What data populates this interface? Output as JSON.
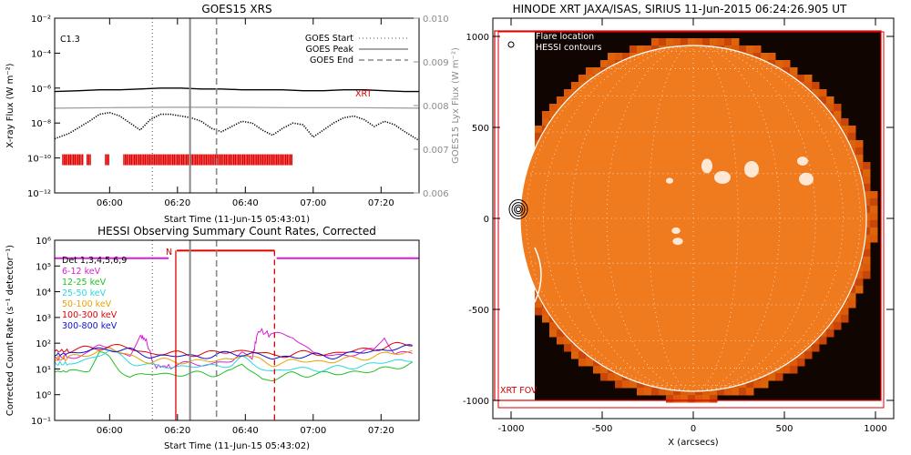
{
  "chart_data": [
    {
      "type": "line",
      "title": "GOES15 XRS",
      "xlabel": "Start Time (11-Jun-15 05:43:01)",
      "ylabel": "X-ray Flux (W m⁻²)",
      "y2label": "GOES15 Lyx Flux (W m⁻²)",
      "x_ticks": [
        "06:00",
        "06:20",
        "06:40",
        "07:00",
        "07:20"
      ],
      "x_range_minutes": [
        5.73,
        7.52
      ],
      "ylim_log10": [
        -12,
        -2
      ],
      "y_ticks": [
        "10⁻²",
        "10⁻⁴",
        "10⁻⁶",
        "10⁻⁸",
        "10⁻¹⁰",
        "10⁻¹²"
      ],
      "y2_range": [
        0.006,
        0.01
      ],
      "y2_ticks": [
        "0.010",
        "0.009",
        "0.008",
        "0.007",
        "0.006"
      ],
      "flare_class": "C1.3",
      "xrt_label": "XRT",
      "legend": [
        {
          "label": "GOES Start",
          "style": "dotted"
        },
        {
          "label": "GOES Peak",
          "style": "solid"
        },
        {
          "label": "GOES End",
          "style": "dashed"
        }
      ],
      "event_times_hours": {
        "start": 6.21,
        "peak": 6.395,
        "end": 6.525
      },
      "series": [
        {
          "name": "",
          "color": "#000000",
          "style": "solid",
          "x_hours": [
            5.73,
            5.85,
            5.95,
            6.05,
            6.15,
            6.25,
            6.35,
            6.45,
            6.55,
            6.65,
            6.75,
            6.85,
            6.95,
            7.05,
            7.15,
            7.25,
            7.35,
            7.45,
            7.52
          ],
          "y_log10": [
            -6.2,
            -6.15,
            -6.1,
            -6.1,
            -6.05,
            -6.0,
            -6.0,
            -6.05,
            -6.05,
            -6.1,
            -6.1,
            -6.1,
            -6.15,
            -6.15,
            -6.1,
            -6.1,
            -6.15,
            -6.2,
            -6.2
          ]
        },
        {
          "name": "",
          "color": "#9a9a9a",
          "style": "solid",
          "x_hours": [
            5.73,
            6.0,
            6.3,
            6.6,
            6.9,
            7.2,
            7.52
          ],
          "y_log10": [
            -7.15,
            -7.12,
            -7.1,
            -7.1,
            -7.12,
            -7.12,
            -7.15
          ]
        },
        {
          "name": "",
          "color": "#000000",
          "style": "dotted",
          "x_hours": [
            5.73,
            5.8,
            5.9,
            5.95,
            6.0,
            6.05,
            6.15,
            6.2,
            6.25,
            6.3,
            6.35,
            6.4,
            6.45,
            6.5,
            6.55,
            6.6,
            6.65,
            6.7,
            6.75,
            6.8,
            6.85,
            6.9,
            6.95,
            7.0,
            7.05,
            7.1,
            7.15,
            7.2,
            7.25,
            7.3,
            7.35,
            7.4,
            7.45,
            7.52
          ],
          "y_log10": [
            -8.9,
            -8.6,
            -7.9,
            -7.5,
            -7.4,
            -7.6,
            -8.4,
            -7.8,
            -7.5,
            -7.5,
            -7.6,
            -7.7,
            -7.9,
            -8.3,
            -8.5,
            -8.2,
            -7.9,
            -8.0,
            -8.4,
            -8.7,
            -8.3,
            -8.0,
            -8.1,
            -8.8,
            -8.4,
            -8.0,
            -7.7,
            -7.6,
            -7.8,
            -8.2,
            -7.9,
            -8.1,
            -8.5,
            -9.0
          ]
        }
      ],
      "hessi_flags_hours": [
        [
          5.77,
          5.87
        ],
        [
          5.89,
          5.91
        ],
        [
          5.98,
          6.0
        ],
        [
          6.07,
          6.29
        ],
        [
          6.295,
          6.9
        ]
      ],
      "hessi_flags_log10": -10.1
    },
    {
      "type": "line",
      "title": "HESSI Observing Summary Count Rates, Corrected",
      "xlabel": "Start Time (11-Jun-15 05:43:02)",
      "ylabel": "Corrected Count Rate (s⁻¹ detector⁻¹)",
      "x_ticks": [
        "06:00",
        "06:20",
        "06:40",
        "07:00",
        "07:20"
      ],
      "ylim_log10": [
        -1,
        6
      ],
      "y_ticks": [
        "10⁶",
        "10⁵",
        "10⁴",
        "10³",
        "10²",
        "10¹",
        "10⁰",
        "10⁻¹"
      ],
      "detectors_label": "Det 1,3,4,5,6,9",
      "flag_label": "N",
      "vlines_hours": {
        "start": 6.21,
        "peak": 6.395,
        "end": 6.525,
        "red1": 6.325,
        "red2": 6.81
      },
      "series": [
        {
          "name": "6-12 keV",
          "color": "#d81ed8",
          "x_hours": [
            5.73,
            5.8,
            5.9,
            5.95,
            6.0,
            6.05,
            6.1,
            6.15,
            6.18,
            6.22,
            6.3,
            6.4,
            6.5,
            6.6,
            6.65,
            6.7,
            6.73,
            6.8,
            6.9,
            7.0,
            7.1,
            7.2,
            7.3,
            7.35,
            7.4,
            7.5
          ],
          "y_log10": [
            1.4,
            1.5,
            1.6,
            1.9,
            1.9,
            1.6,
            1.5,
            2.3,
            2.1,
            1.1,
            1.1,
            1.2,
            1.2,
            1.3,
            1.6,
            1.4,
            2.5,
            2.3,
            2.3,
            1.6,
            1.5,
            1.6,
            1.7,
            2.3,
            1.6,
            1.6
          ]
        },
        {
          "name": "12-25 keV",
          "color": "#22c022",
          "x_hours": [
            5.73,
            5.8,
            5.9,
            5.95,
            6.0,
            6.05,
            6.1,
            6.2,
            6.3,
            6.4,
            6.5,
            6.6,
            6.65,
            6.7,
            6.75,
            6.8,
            6.9,
            7.0,
            7.1,
            7.2,
            7.3,
            7.4,
            7.5
          ],
          "y_log10": [
            0.9,
            0.9,
            1.0,
            1.6,
            1.4,
            1.0,
            0.7,
            0.8,
            0.8,
            0.8,
            0.8,
            0.9,
            1.2,
            0.9,
            0.6,
            0.6,
            0.8,
            0.8,
            0.8,
            0.9,
            0.9,
            1.1,
            1.2
          ]
        },
        {
          "name": "25-50 keV",
          "color": "#2ad7e0",
          "x_hours": [
            5.73,
            5.8,
            5.9,
            6.0,
            6.1,
            6.2,
            6.3,
            6.4,
            6.5,
            6.6,
            6.65,
            6.7,
            6.8,
            6.9,
            7.0,
            7.1,
            7.2,
            7.3,
            7.4,
            7.5
          ],
          "y_log10": [
            1.2,
            1.2,
            1.4,
            1.7,
            1.3,
            1.1,
            1.1,
            1.1,
            1.1,
            1.2,
            1.4,
            1.2,
            0.9,
            1.0,
            1.0,
            1.0,
            1.1,
            1.2,
            1.3,
            1.4
          ]
        },
        {
          "name": "50-100 keV",
          "color": "#e8a200",
          "x_hours": [
            5.73,
            5.8,
            5.9,
            6.0,
            6.1,
            6.2,
            6.3,
            6.4,
            6.5,
            6.6,
            6.65,
            6.7,
            6.8,
            6.9,
            7.0,
            7.1,
            7.2,
            7.3,
            7.4,
            7.5
          ],
          "y_log10": [
            1.4,
            1.4,
            1.6,
            1.8,
            1.5,
            1.3,
            1.3,
            1.3,
            1.3,
            1.4,
            1.6,
            1.4,
            1.2,
            1.3,
            1.3,
            1.3,
            1.4,
            1.5,
            1.6,
            1.7
          ]
        },
        {
          "name": "100-300 keV",
          "color": "#e00000",
          "x_hours": [
            5.73,
            5.8,
            5.9,
            6.0,
            6.1,
            6.2,
            6.3,
            6.4,
            6.5,
            6.6,
            6.7,
            6.8,
            6.9,
            7.0,
            7.1,
            7.2,
            7.3,
            7.4,
            7.5
          ],
          "y_log10": [
            1.7,
            1.7,
            1.8,
            1.9,
            1.8,
            1.6,
            1.6,
            1.6,
            1.6,
            1.7,
            1.7,
            1.5,
            1.6,
            1.6,
            1.6,
            1.7,
            1.8,
            1.9,
            2.0
          ]
        },
        {
          "name": "300-800 keV",
          "color": "#1010d0",
          "x_hours": [
            5.73,
            5.8,
            5.9,
            6.0,
            6.1,
            6.2,
            6.3,
            6.4,
            6.5,
            6.6,
            6.7,
            6.8,
            6.9,
            7.0,
            7.1,
            7.2,
            7.3,
            7.4,
            7.5
          ],
          "y_log10": [
            1.55,
            1.6,
            1.7,
            1.8,
            1.7,
            1.5,
            1.5,
            1.5,
            1.5,
            1.6,
            1.6,
            1.4,
            1.5,
            1.5,
            1.5,
            1.6,
            1.7,
            1.8,
            1.85
          ]
        }
      ],
      "flag_segments": {
        "magenta_y_log10": 5.3,
        "magenta_hours": [
          [
            5.73,
            6.29
          ],
          [
            6.82,
            7.52
          ]
        ],
        "red_y_log10": 5.6,
        "red_hours": [
          [
            6.33,
            6.81
          ]
        ]
      }
    },
    {
      "type": "map",
      "title": "HINODE XRT JAXA/ISAS, SIRIUS 11-Jun-2015 06:24:26.905 UT",
      "xlabel": "X (arcsecs)",
      "x_ticks": [
        "-1000",
        "-500",
        "0",
        "500",
        "1000"
      ],
      "y_ticks": [
        "1000",
        "500",
        "0",
        "-500",
        "-1000"
      ],
      "xlim": [
        -1100,
        1100
      ],
      "ylim": [
        -1100,
        1100
      ],
      "legend": [
        "Flare location",
        "HESSI contours"
      ],
      "fov_label": "XRT FOV",
      "solar_radius_arcsec": 950,
      "colors": {
        "disk": "#f07a1e",
        "bright": "#fff4e8",
        "dark": "#100500",
        "fov": "#e00000"
      }
    }
  ]
}
